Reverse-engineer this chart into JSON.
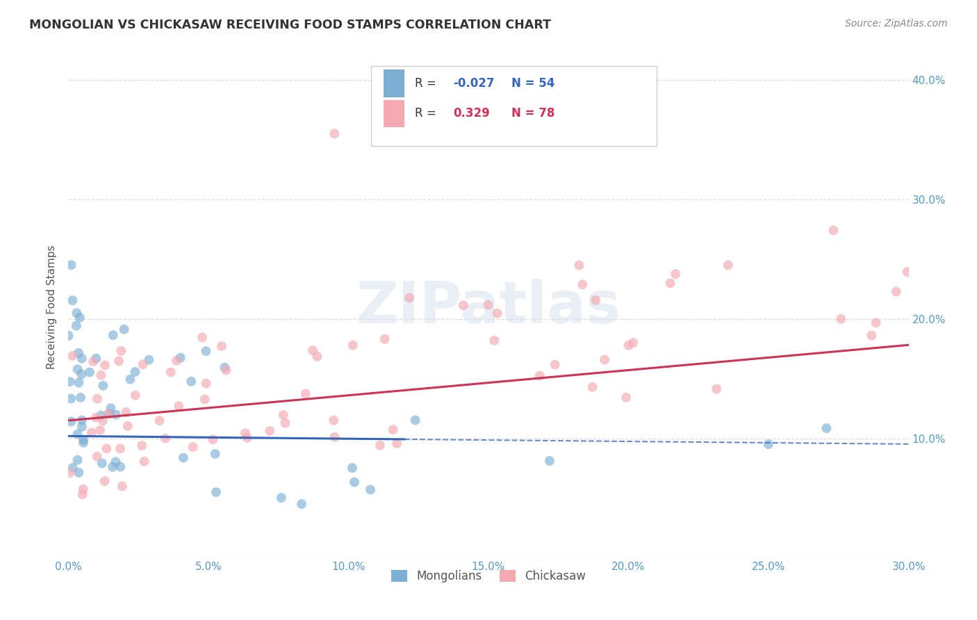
{
  "title": "MONGOLIAN VS CHICKASAW RECEIVING FOOD STAMPS CORRELATION CHART",
  "source": "Source: ZipAtlas.com",
  "ylabel": "Receiving Food Stamps",
  "xlim": [
    0.0,
    0.3
  ],
  "ylim": [
    0.0,
    0.42
  ],
  "xticks": [
    0.0,
    0.05,
    0.1,
    0.15,
    0.2,
    0.25,
    0.3
  ],
  "xtick_labels": [
    "0.0%",
    "5.0%",
    "10.0%",
    "15.0%",
    "20.0%",
    "25.0%",
    "30.0%"
  ],
  "yticks": [
    0.0,
    0.1,
    0.2,
    0.3,
    0.4
  ],
  "ytick_labels_right": [
    "",
    "10.0%",
    "20.0%",
    "30.0%",
    "40.0%"
  ],
  "mongolian_color": "#7bafd4",
  "chickasaw_color": "#f4a8b0",
  "mongolian_trend_color": "#3366bb",
  "chickasaw_trend_color": "#cc3355",
  "legend_R_mongolian": "-0.027",
  "legend_N_mongolian": "54",
  "legend_R_chickasaw": "0.329",
  "legend_N_chickasaw": "78",
  "watermark": "ZIPatlas",
  "grid_color": "#dddddd",
  "tick_color": "#5599cc",
  "bg_color": "#ffffff"
}
